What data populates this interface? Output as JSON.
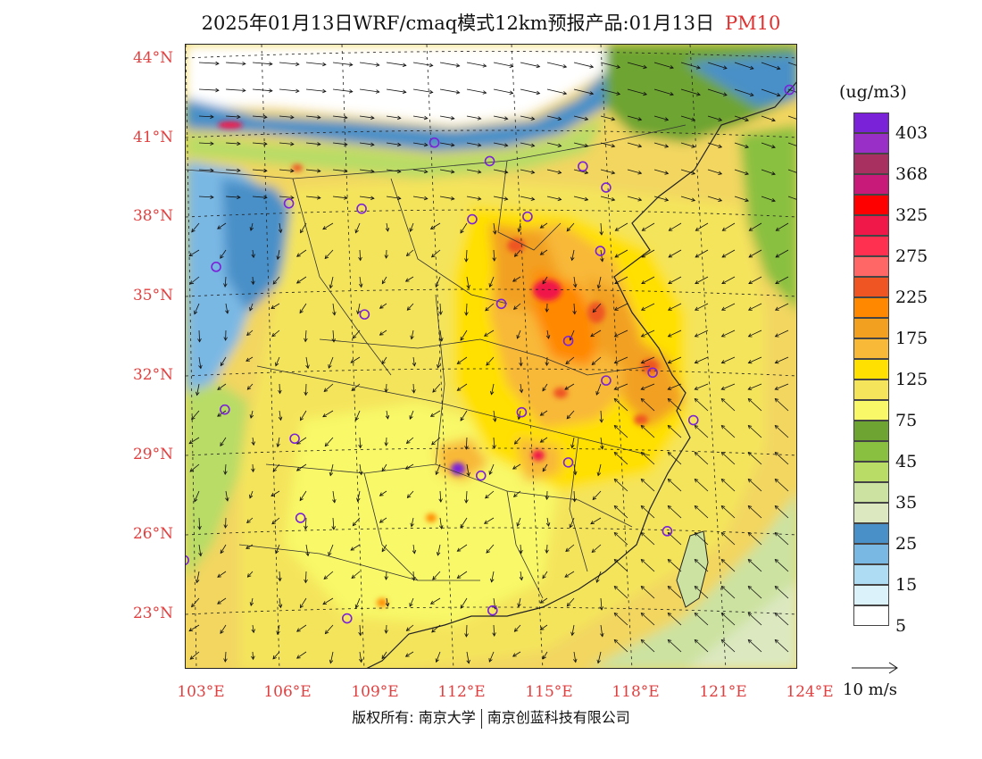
{
  "title": {
    "main": "2025年01月13日WRF/cmaq模式12km预报产品:01月13日",
    "pollutant": "PM10"
  },
  "axes": {
    "lat_labels": [
      "44°N",
      "41°N",
      "38°N",
      "35°N",
      "32°N",
      "29°N",
      "26°N",
      "23°N"
    ],
    "lon_labels": [
      "103°E",
      "106°E",
      "109°E",
      "112°E",
      "115°E",
      "118°E",
      "121°E",
      "124°E"
    ]
  },
  "legend": {
    "units": "(ug/m3)",
    "colors": [
      "#7a22d8",
      "#9a2fc8",
      "#a83060",
      "#c81a78",
      "#ff0000",
      "#f01848",
      "#ff3050",
      "#ff6666",
      "#ee5522",
      "#ff8800",
      "#f2a020",
      "#f8b838",
      "#ffe000",
      "#f4e45c",
      "#f8f868",
      "#6ea432",
      "#8ac040",
      "#b8dc66",
      "#cce2a0",
      "#dce8c0",
      "#4a90c8",
      "#7ab8e4",
      "#aedcf2",
      "#dcf2fa",
      "#ffffff"
    ],
    "ticks": [
      "403",
      "368",
      "325",
      "275",
      "225",
      "175",
      "125",
      "75",
      "45",
      "35",
      "25",
      "15",
      "5"
    ]
  },
  "wind": {
    "reference_label": "10 m/s"
  },
  "cities": [
    {
      "lon": 123.5,
      "lat": 42.8
    },
    {
      "lon": 111.3,
      "lat": 40.8
    },
    {
      "lon": 113.2,
      "lat": 40.1
    },
    {
      "lon": 116.4,
      "lat": 39.9
    },
    {
      "lon": 117.2,
      "lat": 39.1
    },
    {
      "lon": 106.3,
      "lat": 38.5
    },
    {
      "lon": 108.8,
      "lat": 38.3
    },
    {
      "lon": 114.5,
      "lat": 38.0
    },
    {
      "lon": 103.8,
      "lat": 36.1
    },
    {
      "lon": 112.6,
      "lat": 37.9
    },
    {
      "lon": 108.9,
      "lat": 34.3
    },
    {
      "lon": 113.6,
      "lat": 34.7
    },
    {
      "lon": 117.0,
      "lat": 36.7
    },
    {
      "lon": 115.9,
      "lat": 33.3
    },
    {
      "lon": 117.2,
      "lat": 31.8
    },
    {
      "lon": 118.8,
      "lat": 32.1
    },
    {
      "lon": 120.2,
      "lat": 30.3
    },
    {
      "lon": 114.3,
      "lat": 30.6
    },
    {
      "lon": 104.1,
      "lat": 30.7
    },
    {
      "lon": 106.5,
      "lat": 29.6
    },
    {
      "lon": 112.9,
      "lat": 28.2
    },
    {
      "lon": 115.9,
      "lat": 28.7
    },
    {
      "lon": 106.7,
      "lat": 26.6
    },
    {
      "lon": 119.3,
      "lat": 26.1
    },
    {
      "lon": 102.7,
      "lat": 25.0
    },
    {
      "lon": 108.3,
      "lat": 22.8
    },
    {
      "lon": 113.3,
      "lat": 23.1
    }
  ],
  "copyright": {
    "left": "版权所有: 南京大学",
    "right": "南京创蓝科技有限公司"
  }
}
